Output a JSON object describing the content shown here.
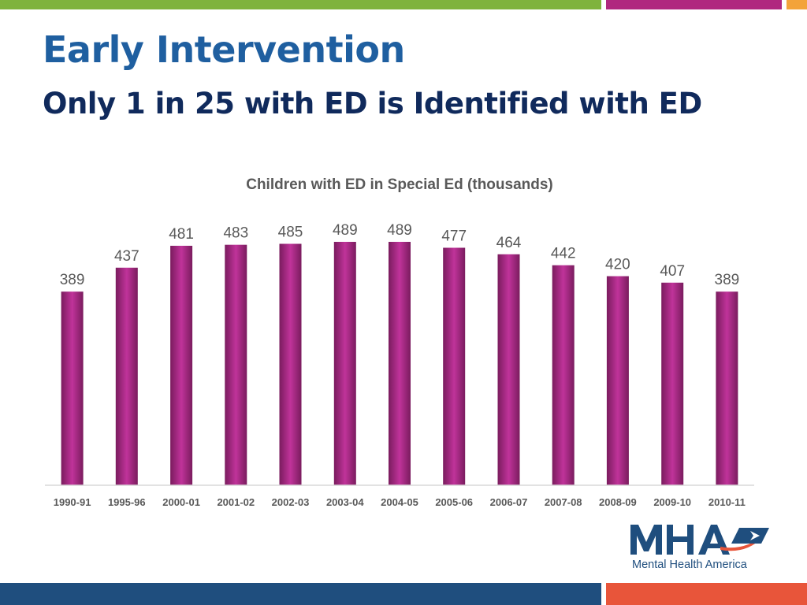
{
  "slide": {
    "title": "Early Intervention",
    "subtitle": "Only 1 in 25 with ED is Identified with ED"
  },
  "theme": {
    "top_bar_colors": [
      "#7fb33d",
      "#b0287f",
      "#f3a33a"
    ],
    "bottom_bar_colors": [
      "#1f4e7e",
      "#e8553a"
    ],
    "bar_color": "#a6267e",
    "title_color": "#1f5fa0",
    "subtitle_color": "#102a5c"
  },
  "chart_data": {
    "type": "bar",
    "title": "Children with ED in Special Ed (thousands)",
    "categories": [
      "1990-91",
      "1995-96",
      "2000-01",
      "2001-02",
      "2002-03",
      "2003-04",
      "2004-05",
      "2005-06",
      "2006-07",
      "2007-08",
      "2008-09",
      "2009-10",
      "2010-11"
    ],
    "values": [
      389,
      437,
      481,
      483,
      485,
      489,
      489,
      477,
      464,
      442,
      420,
      407,
      389
    ],
    "xlabel": "",
    "ylabel": "",
    "ylim": [
      0,
      500
    ],
    "grid": false,
    "data_labels": true
  },
  "logo": {
    "name": "mha-logo",
    "text": "Mental Health America"
  }
}
